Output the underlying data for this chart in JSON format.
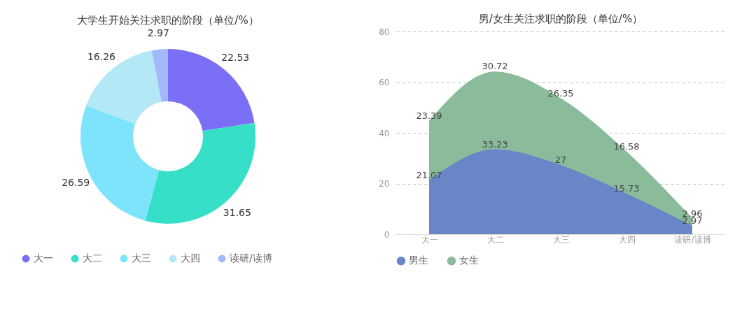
{
  "chart_data": [
    {
      "type": "donut",
      "title": "大学生开始关注求职的阶段（单位/%）",
      "categories": [
        "大一",
        "大二",
        "大三",
        "大四",
        "读研/读博"
      ],
      "values": [
        22.53,
        31.65,
        26.59,
        16.26,
        2.97
      ],
      "colors": [
        "#7b6ff5",
        "#36e0c8",
        "#7de4fb",
        "#b5e8f7",
        "#a3b9f7"
      ],
      "data_labels": true,
      "legend": "bottom"
    },
    {
      "type": "area",
      "title": "男/女生关注求职的阶段（单位/%）",
      "stacked": true,
      "categories": [
        "大一",
        "大二",
        "大三",
        "大四",
        "读研/读博"
      ],
      "series": [
        {
          "name": "男生",
          "color": "#6886c8",
          "values": [
            21.07,
            33.23,
            27,
            15.73,
            2.97
          ]
        },
        {
          "name": "女生",
          "color": "#8abb9a",
          "values": [
            23.39,
            30.72,
            26.35,
            16.58,
            2.96
          ]
        }
      ],
      "ylim": [
        0,
        80
      ],
      "yticks": [
        0,
        20,
        40,
        60,
        80
      ],
      "grid": "y",
      "data_labels": true,
      "legend": "bottom"
    }
  ]
}
